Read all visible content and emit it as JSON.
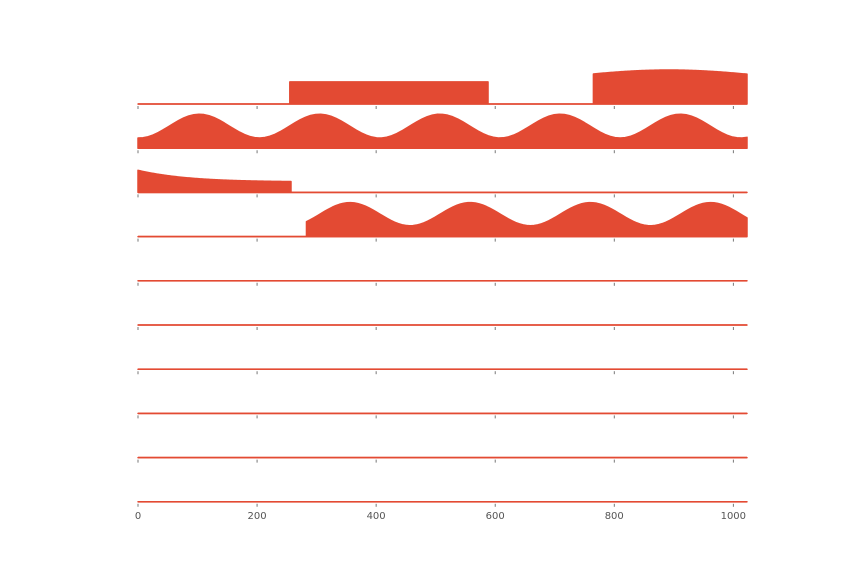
{
  "chart_data": {
    "type": "area",
    "title": "",
    "xlabel": "",
    "ylabel": "",
    "xlim": [
      0,
      1023
    ],
    "x_ticks": [
      0,
      200,
      400,
      600,
      800,
      1000
    ],
    "x_tick_labels": [
      "0",
      "200",
      "400",
      "600",
      "800",
      "1000"
    ],
    "grid": false,
    "color": "#e34a33",
    "panels": [
      {
        "segments": [
          {
            "kind": "constant",
            "x_start": 0,
            "x_end": 255,
            "value": 0.0
          },
          {
            "kind": "constant",
            "x_start": 255,
            "x_end": 588,
            "value": 0.65
          },
          {
            "kind": "constant",
            "x_start": 588,
            "x_end": 765,
            "value": 0.0
          },
          {
            "kind": "sine",
            "x_start": 765,
            "x_end": 1023,
            "mean": 0.83,
            "amplitude": 0.17,
            "period": 640,
            "peak_x": 892
          }
        ]
      },
      {
        "segments": [
          {
            "kind": "sine",
            "x_start": 0,
            "x_end": 1023,
            "mean": 0.65,
            "amplitude": 0.35,
            "period": 202,
            "peak_x": 103
          }
        ]
      },
      {
        "segments": [
          {
            "kind": "decay",
            "x_start": 0,
            "x_end": 257,
            "from": 0.65,
            "to": 0.32
          },
          {
            "kind": "constant",
            "x_start": 257,
            "x_end": 1023,
            "value": 0.0
          }
        ]
      },
      {
        "segments": [
          {
            "kind": "constant",
            "x_start": 0,
            "x_end": 283,
            "value": 0.0
          },
          {
            "kind": "sine",
            "x_start": 283,
            "x_end": 1023,
            "mean": 0.66,
            "amplitude": 0.34,
            "period": 202,
            "peak_x": 356
          }
        ]
      },
      {
        "segments": [
          {
            "kind": "constant",
            "x_start": 0,
            "x_end": 1023,
            "value": 0.0
          }
        ]
      },
      {
        "segments": [
          {
            "kind": "constant",
            "x_start": 0,
            "x_end": 1023,
            "value": 0.0
          }
        ]
      },
      {
        "segments": [
          {
            "kind": "constant",
            "x_start": 0,
            "x_end": 1023,
            "value": 0.0
          }
        ]
      },
      {
        "segments": [
          {
            "kind": "constant",
            "x_start": 0,
            "x_end": 1023,
            "value": 0.0
          }
        ]
      },
      {
        "segments": [
          {
            "kind": "constant",
            "x_start": 0,
            "x_end": 1023,
            "value": 0.0
          }
        ]
      },
      {
        "segments": [
          {
            "kind": "constant",
            "x_start": 0,
            "x_end": 1023,
            "value": 0.0
          }
        ]
      }
    ]
  }
}
